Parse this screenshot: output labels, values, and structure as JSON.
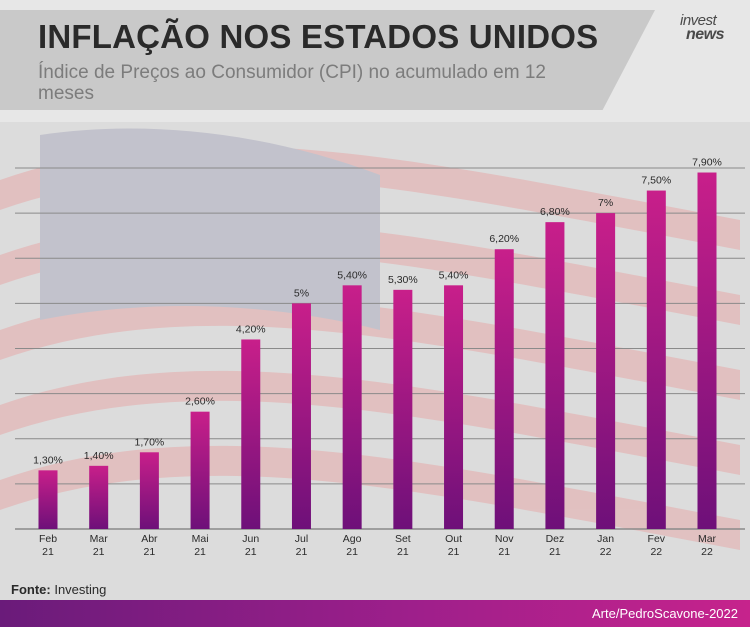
{
  "header": {
    "title": "INFLAÇÃO NOS ESTADOS UNIDOS",
    "subtitle": "Índice de Preços ao Consumidor (CPI) no acumulado em 12 meses"
  },
  "logo": {
    "top": "invest",
    "bottom": "news"
  },
  "source": {
    "label": "Fonte:",
    "value": "Investing"
  },
  "credit": "Arte/PedroScavone-2022",
  "colors": {
    "bar_top": "#c81f8a",
    "bar_bottom": "#6e1079",
    "footer": "#9e1f8b",
    "grid": "#8a8a8a"
  },
  "chart_data": {
    "type": "bar",
    "categories": [
      [
        "Feb",
        "21"
      ],
      [
        "Mar",
        "21"
      ],
      [
        "Abr",
        "21"
      ],
      [
        "Mai",
        "21"
      ],
      [
        "Jun",
        "21"
      ],
      [
        "Jul",
        "21"
      ],
      [
        "Ago",
        "21"
      ],
      [
        "Set",
        "21"
      ],
      [
        "Out",
        "21"
      ],
      [
        "Nov",
        "21"
      ],
      [
        "Dez",
        "21"
      ],
      [
        "Jan",
        "22"
      ],
      [
        "Fev",
        "22"
      ],
      [
        "Mar",
        "22"
      ]
    ],
    "values": [
      1.3,
      1.4,
      1.7,
      2.6,
      4.2,
      5.0,
      5.4,
      5.3,
      5.4,
      6.2,
      6.8,
      7.0,
      7.5,
      7.9
    ],
    "labels": [
      "1,30%",
      "1,40%",
      "1,70%",
      "2,60%",
      "4,20%",
      "5%",
      "5,40%",
      "5,30%",
      "5,40%",
      "6,20%",
      "6,80%",
      "7%",
      "7,50%",
      "7,90%"
    ],
    "ylim": [
      0,
      8
    ],
    "grid": true
  }
}
